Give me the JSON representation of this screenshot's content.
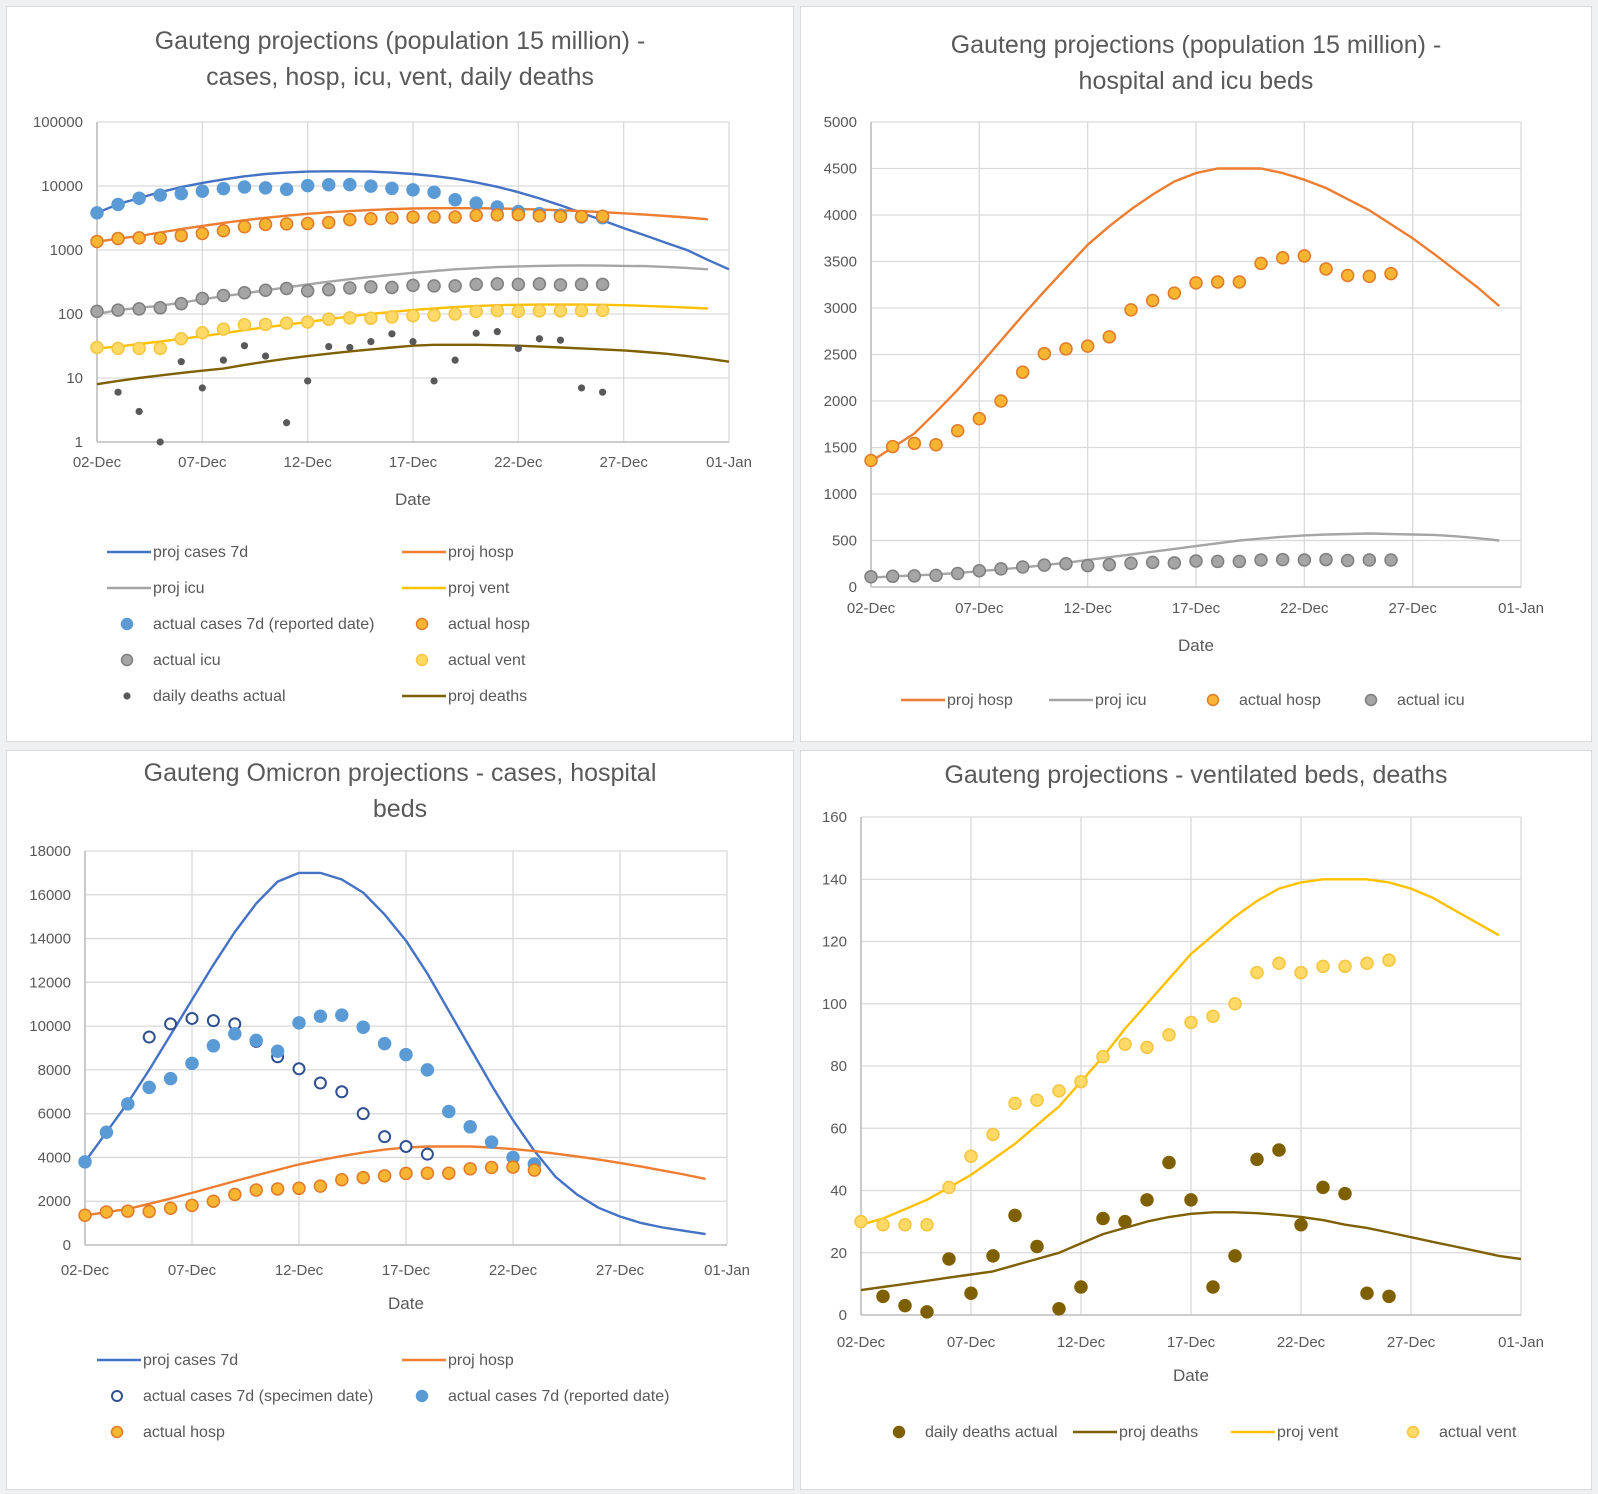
{
  "chart_data": [
    {
      "id": "c1",
      "type": "line",
      "title": [
        "Gauteng projections (population 15 million) -",
        "cases, hosp, icu, vent, daily deaths"
      ],
      "xlabel": "Date",
      "ylabel": "",
      "yscale": "log",
      "ylim": [
        1,
        100000
      ],
      "yticks": [
        "1",
        "10",
        "100",
        "1000",
        "10000",
        "100000"
      ],
      "xticks": [
        "02-Dec",
        "07-Dec",
        "12-Dec",
        "17-Dec",
        "22-Dec",
        "27-Dec",
        "01-Jan"
      ],
      "xrange_days": [
        0,
        30
      ],
      "grid": true,
      "legend_position": "bottom",
      "series": [
        {
          "name": "proj cases 7d",
          "kind": "line",
          "color": "#4472c4",
          "x_start": 0,
          "values": [
            3800,
            5200,
            6500,
            8000,
            9600,
            11200,
            12700,
            14200,
            15400,
            16200,
            16800,
            17000,
            17000,
            16800,
            16200,
            15400,
            14300,
            13000,
            11400,
            9700,
            8000,
            6400,
            5000,
            3800,
            2900,
            2200,
            1700,
            1300,
            1000,
            700,
            500
          ]
        },
        {
          "name": "proj hosp",
          "kind": "line",
          "color": "#ed7d31",
          "x_start": 0,
          "values": [
            1350,
            1500,
            1650,
            1880,
            2120,
            2380,
            2650,
            2920,
            3180,
            3430,
            3680,
            3880,
            4060,
            4220,
            4360,
            4450,
            4500,
            4500,
            4500,
            4450,
            4380,
            4290,
            4170,
            4050,
            3900,
            3750,
            3580,
            3400,
            3220,
            3020
          ]
        },
        {
          "name": "proj icu",
          "kind": "line",
          "color": "#a5a5a5",
          "x_start": 0,
          "values": [
            100,
            115,
            125,
            135,
            150,
            170,
            190,
            210,
            235,
            260,
            290,
            320,
            350,
            380,
            410,
            440,
            470,
            500,
            520,
            540,
            555,
            565,
            570,
            575,
            570,
            565,
            560,
            545,
            525,
            500
          ]
        },
        {
          "name": "proj vent",
          "kind": "line",
          "color": "#ffc000",
          "x_start": 0,
          "values": [
            29,
            31,
            34,
            37,
            41,
            45,
            50,
            56,
            62,
            68,
            75,
            83,
            92,
            100,
            108,
            116,
            122,
            128,
            133,
            137,
            139,
            140,
            140,
            140,
            139,
            137,
            134,
            130,
            126,
            122
          ]
        },
        {
          "name": "actual cases 7d (reported date)",
          "kind": "marker",
          "color": "#5b9bd5",
          "x_start": 0,
          "values": [
            3800,
            5150,
            6450,
            7200,
            7600,
            8300,
            9100,
            9650,
            9350,
            8850,
            10150,
            10450,
            10500,
            9950,
            9200,
            8700,
            8000,
            6100,
            5400,
            4700,
            4000,
            3700,
            3500,
            3300,
            3200
          ]
        },
        {
          "name": "actual hosp",
          "kind": "marker",
          "color": "#f7b532",
          "edge": "#e07b2a",
          "x_start": 0,
          "values": [
            1360,
            1510,
            1545,
            1530,
            1680,
            1810,
            2000,
            2310,
            2510,
            2560,
            2590,
            2690,
            2980,
            3080,
            3160,
            3270,
            3280,
            3280,
            3480,
            3540,
            3560,
            3420,
            3350,
            3340,
            3370
          ]
        },
        {
          "name": "actual icu",
          "kind": "marker",
          "color": "#a5a5a5",
          "edge": "#7f7f7f",
          "x_start": 0,
          "values": [
            110,
            115,
            120,
            125,
            145,
            175,
            195,
            215,
            235,
            250,
            230,
            240,
            255,
            265,
            260,
            280,
            275,
            275,
            290,
            295,
            290,
            295,
            285,
            290,
            290
          ]
        },
        {
          "name": "actual vent",
          "kind": "marker",
          "color": "#ffd966",
          "edge": "#f4c542",
          "x_start": 0,
          "values": [
            30,
            29,
            29,
            29,
            41,
            51,
            58,
            68,
            69,
            72,
            75,
            83,
            87,
            86,
            90,
            94,
            96,
            100,
            110,
            113,
            110,
            112,
            112,
            113,
            114
          ]
        },
        {
          "name": "daily deaths actual",
          "kind": "smallmarker",
          "color": "#595959",
          "x_start": 1,
          "values": [
            6,
            3,
            1,
            18,
            7,
            19,
            32,
            22,
            2,
            9,
            31,
            30,
            37,
            49,
            37,
            9,
            19,
            50,
            53,
            29,
            41,
            39,
            7,
            6
          ]
        },
        {
          "name": "proj deaths",
          "kind": "line",
          "color": "#7f6000",
          "x_start": 0,
          "values": [
            8,
            9,
            10,
            11,
            12,
            13,
            14,
            16,
            18,
            20,
            22,
            24,
            26,
            28,
            30,
            32,
            33,
            33,
            33,
            32.5,
            32,
            31,
            30,
            29,
            28,
            27,
            25.5,
            24,
            22,
            20,
            18
          ]
        }
      ],
      "legend": [
        "proj cases 7d",
        "proj hosp",
        "proj icu",
        "proj vent",
        "actual cases 7d (reported date)",
        "actual hosp",
        "actual icu",
        "actual vent",
        "daily deaths actual",
        "proj deaths"
      ]
    },
    {
      "id": "c2",
      "type": "line",
      "title": [
        "Gauteng projections (population 15 million) -",
        "hospital and icu beds"
      ],
      "xlabel": "Date",
      "ylabel": "",
      "yscale": "linear",
      "ylim": [
        0,
        5000
      ],
      "yticks": [
        "0",
        "500",
        "1000",
        "1500",
        "2000",
        "2500",
        "3000",
        "3500",
        "4000",
        "4500",
        "5000"
      ],
      "xticks": [
        "02-Dec",
        "07-Dec",
        "12-Dec",
        "17-Dec",
        "22-Dec",
        "27-Dec",
        "01-Jan"
      ],
      "xrange_days": [
        0,
        30
      ],
      "grid": true,
      "legend_position": "bottom",
      "series": [
        {
          "name": "proj hosp",
          "kind": "line",
          "color": "#ed7d31",
          "x_start": 0,
          "values": [
            1350,
            1500,
            1650,
            1880,
            2120,
            2380,
            2650,
            2920,
            3180,
            3430,
            3680,
            3880,
            4060,
            4220,
            4360,
            4450,
            4500,
            4500,
            4500,
            4450,
            4380,
            4290,
            4170,
            4050,
            3900,
            3750,
            3580,
            3400,
            3220,
            3020
          ]
        },
        {
          "name": "proj icu",
          "kind": "line",
          "color": "#a5a5a5",
          "x_start": 0,
          "values": [
            100,
            115,
            125,
            135,
            150,
            170,
            190,
            210,
            235,
            260,
            290,
            320,
            350,
            380,
            410,
            440,
            470,
            500,
            520,
            540,
            555,
            565,
            570,
            575,
            570,
            565,
            560,
            545,
            525,
            500
          ]
        },
        {
          "name": "actual hosp",
          "kind": "marker",
          "color": "#f7b532",
          "edge": "#e07b2a",
          "x_start": 0,
          "values": [
            1360,
            1510,
            1545,
            1530,
            1680,
            1810,
            2000,
            2310,
            2510,
            2560,
            2590,
            2690,
            2980,
            3080,
            3160,
            3270,
            3280,
            3280,
            3480,
            3540,
            3560,
            3420,
            3350,
            3340,
            3370
          ]
        },
        {
          "name": "actual icu",
          "kind": "marker",
          "color": "#a5a5a5",
          "edge": "#7f7f7f",
          "x_start": 0,
          "values": [
            110,
            115,
            120,
            125,
            145,
            175,
            195,
            215,
            235,
            250,
            230,
            240,
            255,
            265,
            260,
            280,
            275,
            275,
            290,
            295,
            290,
            295,
            285,
            290,
            290
          ]
        }
      ],
      "legend": [
        "proj hosp",
        "proj icu",
        "actual hosp",
        "actual icu"
      ]
    },
    {
      "id": "c3",
      "type": "line",
      "title": [
        "Gauteng Omicron projections - cases, hospital",
        "beds"
      ],
      "xlabel": "Date",
      "ylabel": "",
      "yscale": "linear",
      "ylim": [
        0,
        18000
      ],
      "yticks": [
        "0",
        "2000",
        "4000",
        "6000",
        "8000",
        "10000",
        "12000",
        "14000",
        "16000",
        "18000"
      ],
      "xticks": [
        "02-Dec",
        "07-Dec",
        "12-Dec",
        "17-Dec",
        "22-Dec",
        "27-Dec",
        "01-Jan"
      ],
      "xrange_days": [
        0,
        30
      ],
      "grid": true,
      "legend_position": "bottom",
      "series": [
        {
          "name": "proj cases 7d",
          "kind": "line",
          "color": "#4472c4",
          "x_start": 0,
          "values": [
            3800,
            5150,
            6500,
            8000,
            9600,
            11200,
            12800,
            14300,
            15600,
            16600,
            17000,
            17000,
            16700,
            16100,
            15100,
            13900,
            12400,
            10700,
            9000,
            7300,
            5700,
            4300,
            3100,
            2300,
            1700,
            1300,
            1000,
            800,
            650,
            500
          ]
        },
        {
          "name": "proj hosp",
          "kind": "line",
          "color": "#ed7d31",
          "x_start": 0,
          "values": [
            1350,
            1500,
            1650,
            1880,
            2120,
            2380,
            2650,
            2920,
            3180,
            3430,
            3680,
            3880,
            4060,
            4220,
            4360,
            4450,
            4500,
            4500,
            4500,
            4450,
            4380,
            4290,
            4170,
            4050,
            3900,
            3750,
            3580,
            3400,
            3220,
            3020
          ]
        },
        {
          "name": "actual cases 7d (specimen date)",
          "kind": "hollow",
          "color": "#2f4f8f",
          "x_start": 3,
          "values": [
            9500,
            10100,
            10350,
            10250,
            10100,
            9300,
            8600,
            8050,
            7400,
            7000,
            6000,
            4950,
            4500,
            4150
          ]
        },
        {
          "name": "actual cases 7d (reported date)",
          "kind": "marker",
          "color": "#5b9bd5",
          "x_start": 0,
          "values": [
            3800,
            5150,
            6450,
            7200,
            7600,
            8300,
            9100,
            9650,
            9350,
            8850,
            10150,
            10450,
            10500,
            9950,
            9200,
            8700,
            8000,
            6100,
            5400,
            4700,
            4000,
            3700
          ]
        },
        {
          "name": "actual hosp",
          "kind": "marker",
          "color": "#f7b532",
          "edge": "#e07b2a",
          "x_start": 0,
          "values": [
            1360,
            1510,
            1545,
            1530,
            1680,
            1810,
            2000,
            2310,
            2510,
            2560,
            2590,
            2690,
            2980,
            3080,
            3160,
            3270,
            3280,
            3280,
            3480,
            3540,
            3560,
            3420
          ]
        }
      ],
      "legend": [
        "proj cases 7d",
        "proj hosp",
        "actual cases 7d (specimen date)",
        "actual cases 7d (reported date)",
        "actual hosp"
      ]
    },
    {
      "id": "c4",
      "type": "line",
      "title": [
        "Gauteng projections - ventilated beds, deaths"
      ],
      "xlabel": "Date",
      "ylabel": "",
      "yscale": "linear",
      "ylim": [
        0,
        160
      ],
      "yticks": [
        "0",
        "20",
        "40",
        "60",
        "80",
        "100",
        "120",
        "140",
        "160"
      ],
      "xticks": [
        "02-Dec",
        "07-Dec",
        "12-Dec",
        "17-Dec",
        "22-Dec",
        "27-Dec",
        "01-Jan"
      ],
      "xrange_days": [
        0,
        30
      ],
      "grid": true,
      "legend_position": "bottom",
      "series": [
        {
          "name": "daily deaths actual",
          "kind": "marker",
          "color": "#7f6000",
          "edge": "#7f6000",
          "x_start": 1,
          "values": [
            6,
            3,
            1,
            18,
            7,
            19,
            32,
            22,
            2,
            9,
            31,
            30,
            37,
            49,
            37,
            9,
            19,
            50,
            53,
            29,
            41,
            39,
            7,
            6
          ]
        },
        {
          "name": "proj deaths",
          "kind": "line",
          "color": "#7f6000",
          "x_start": 0,
          "values": [
            8,
            9,
            10,
            11,
            12,
            13,
            14,
            16,
            18,
            20,
            23,
            26,
            28,
            30,
            31.5,
            32.5,
            33,
            33,
            32.7,
            32.2,
            31.5,
            30.5,
            29,
            28,
            26.5,
            25,
            23.5,
            22,
            20.5,
            19,
            18
          ]
        },
        {
          "name": "proj vent",
          "kind": "line",
          "color": "#ffc000",
          "x_start": 0,
          "values": [
            29,
            31,
            34,
            37,
            41,
            45,
            50,
            55,
            61,
            67,
            75,
            83,
            92,
            100,
            108,
            116,
            122,
            128,
            133,
            137,
            139,
            140,
            140,
            140,
            139,
            137,
            134,
            130,
            126,
            122
          ]
        },
        {
          "name": "actual vent",
          "kind": "marker",
          "color": "#ffd966",
          "edge": "#f4c542",
          "x_start": 0,
          "values": [
            30,
            29,
            29,
            29,
            41,
            51,
            58,
            68,
            69,
            72,
            75,
            83,
            87,
            86,
            90,
            94,
            96,
            100,
            110,
            113,
            110,
            112,
            112,
            113,
            114
          ]
        }
      ],
      "legend": [
        "daily deaths actual",
        "proj deaths",
        "proj vent",
        "actual vent"
      ]
    }
  ]
}
